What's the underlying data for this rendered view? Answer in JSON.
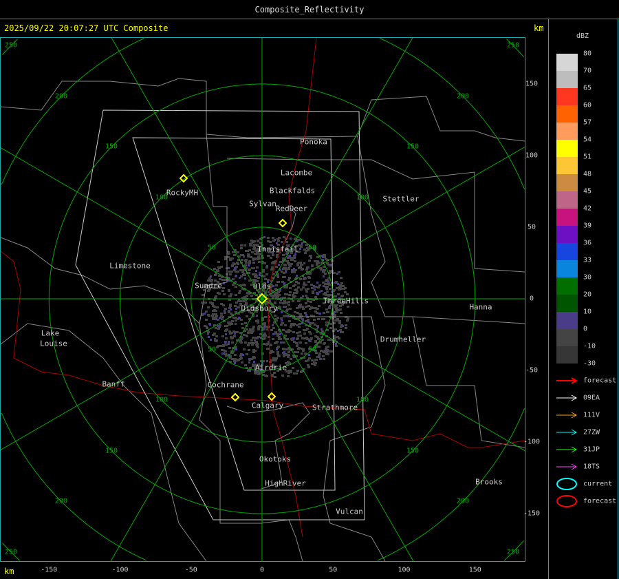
{
  "window": {
    "title": "Composite_Reflectivity"
  },
  "header": {
    "timestamp": "2025/09/22 20:07:27 UTC Composite",
    "unit_top": "km",
    "unit_bottom": "km"
  },
  "map": {
    "x_ticks": [
      "-150",
      "-100",
      "-50",
      "0",
      "50",
      "100",
      "150"
    ],
    "y_ticks": [
      "150",
      "100",
      "50",
      "0",
      "-50",
      "-100",
      "-150"
    ],
    "ring_labels": [
      "50",
      "100",
      "150",
      "200",
      "250"
    ],
    "towns": [
      "Ponoka",
      "Lacombe",
      "Blackfalds",
      "Sylvan",
      "RedDeer",
      "RockyMH",
      "Stettler",
      "Innisfail",
      "Limestone",
      "Sundre",
      "Olds",
      "Didsbury",
      "ThreeHills",
      "Hanna",
      "Lake",
      "Louise",
      "Drumheller",
      "Airdrie",
      "Cochrane",
      "Banff",
      "Calgary",
      "Strathmore",
      "Okotoks",
      "Brooks",
      "HighRiver",
      "Vulcan"
    ],
    "colors": {
      "rings": "#0a0",
      "roads": "#a00",
      "boundaries": "#888",
      "domain": "#ccc",
      "radar_site": "#ff0"
    }
  },
  "legend": {
    "unit": "dBZ",
    "labels": [
      "80",
      "70",
      "65",
      "60",
      "57",
      "54",
      "51",
      "48",
      "45",
      "42",
      "39",
      "36",
      "33",
      "30",
      "20",
      "10",
      "0",
      "-10",
      "-30"
    ],
    "colors": [
      "#d6d6d6",
      "#bdbdbd",
      "#ff3720",
      "#ff6200",
      "#ff9b5c",
      "#ffff00",
      "#fcc635",
      "#cd8b42",
      "#bf6688",
      "#c8137f",
      "#6d10c3",
      "#1645e0",
      "#0a85dd",
      "#006f00",
      "#005500",
      "#4b3c8a",
      "#444444",
      "#363636"
    ],
    "tracks": [
      {
        "label": "forecast",
        "color": "#ff0000"
      },
      {
        "label": "09EA",
        "color": "#ffffff"
      },
      {
        "label": "111V",
        "color": "#ffa020"
      },
      {
        "label": "27ZW",
        "color": "#00ffff"
      },
      {
        "label": "31JP",
        "color": "#20ff20"
      },
      {
        "label": "18TS",
        "color": "#ff40ff"
      }
    ],
    "cells": [
      {
        "label": "current",
        "color": "#00ffff"
      },
      {
        "label": "forecast",
        "color": "#ff0000"
      }
    ]
  }
}
